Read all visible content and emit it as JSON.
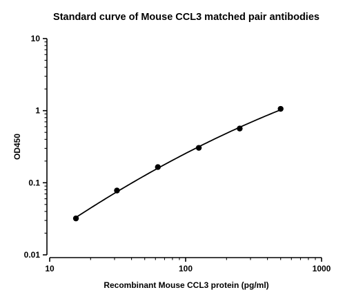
{
  "chart_data": {
    "type": "scatter",
    "title": "Standard curve of Mouse CCL3 matched pair antibodies",
    "xlabel": "Recombinant Mouse CCL3 protein (pg/ml)",
    "ylabel": "OD450",
    "x_scale": "log",
    "y_scale": "log",
    "xlim": [
      10,
      1000
    ],
    "ylim": [
      0.01,
      10
    ],
    "x_ticks": [
      10,
      100,
      1000
    ],
    "x_tick_labels": [
      "10",
      "100",
      "1000"
    ],
    "y_ticks": [
      0.01,
      0.1,
      1,
      10
    ],
    "y_tick_labels": [
      "0.01",
      "0.1",
      "1",
      "10"
    ],
    "grid": false,
    "legend": "none",
    "fit_curve": true,
    "x": [
      15.6,
      31.25,
      62.5,
      125,
      250,
      500
    ],
    "y": [
      0.032,
      0.078,
      0.165,
      0.305,
      0.565,
      1.06
    ],
    "colors": {
      "points": "#000000",
      "curve": "#000000",
      "axes": "#000000"
    }
  }
}
